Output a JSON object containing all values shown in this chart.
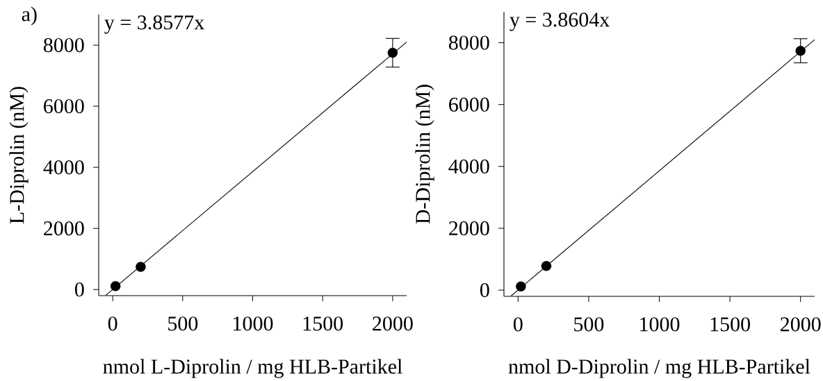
{
  "chart_data": [
    {
      "type": "scatter",
      "title": "a)",
      "xlabel": "nmol L-Diprolin / mg HLB-Partikel",
      "ylabel": "L-Diprolin (nM)",
      "annotations": [
        "y = 3.8577x"
      ],
      "xlim": [
        -100,
        2100
      ],
      "ylim": [
        -200,
        9000
      ],
      "xticks": [
        0,
        500,
        1000,
        1500,
        2000
      ],
      "yticks": [
        0,
        2000,
        4000,
        6000,
        8000
      ],
      "series": [
        {
          "color": "#000000",
          "marker": "circle",
          "x": [
            20,
            200,
            2000
          ],
          "values": [
            110,
            740,
            7750
          ],
          "errors": [
            null,
            null,
            470
          ]
        },
        {
          "type": "line",
          "color": "#000000",
          "line_style": "solid",
          "x": [
            -50,
            2100
          ],
          "values": [
            -190,
            8100
          ]
        }
      ]
    },
    {
      "type": "scatter",
      "xlabel": "nmol D-Diprolin / mg HLB-Partikel",
      "ylabel": "D-Diprolin (nM)",
      "annotations": [
        "y = 3.8604x"
      ],
      "xlim": [
        -100,
        2100
      ],
      "ylim": [
        -200,
        9000
      ],
      "xticks": [
        0,
        500,
        1000,
        1500,
        2000
      ],
      "yticks": [
        0,
        2000,
        4000,
        6000,
        8000
      ],
      "series": [
        {
          "color": "#000000",
          "marker": "circle",
          "x": [
            20,
            200,
            2000
          ],
          "values": [
            120,
            780,
            7740
          ],
          "errors": [
            null,
            null,
            390
          ]
        },
        {
          "type": "line",
          "color": "#000000",
          "line_style": "solid",
          "x": [
            -50,
            2100
          ],
          "values": [
            -190,
            8100
          ]
        }
      ]
    }
  ]
}
